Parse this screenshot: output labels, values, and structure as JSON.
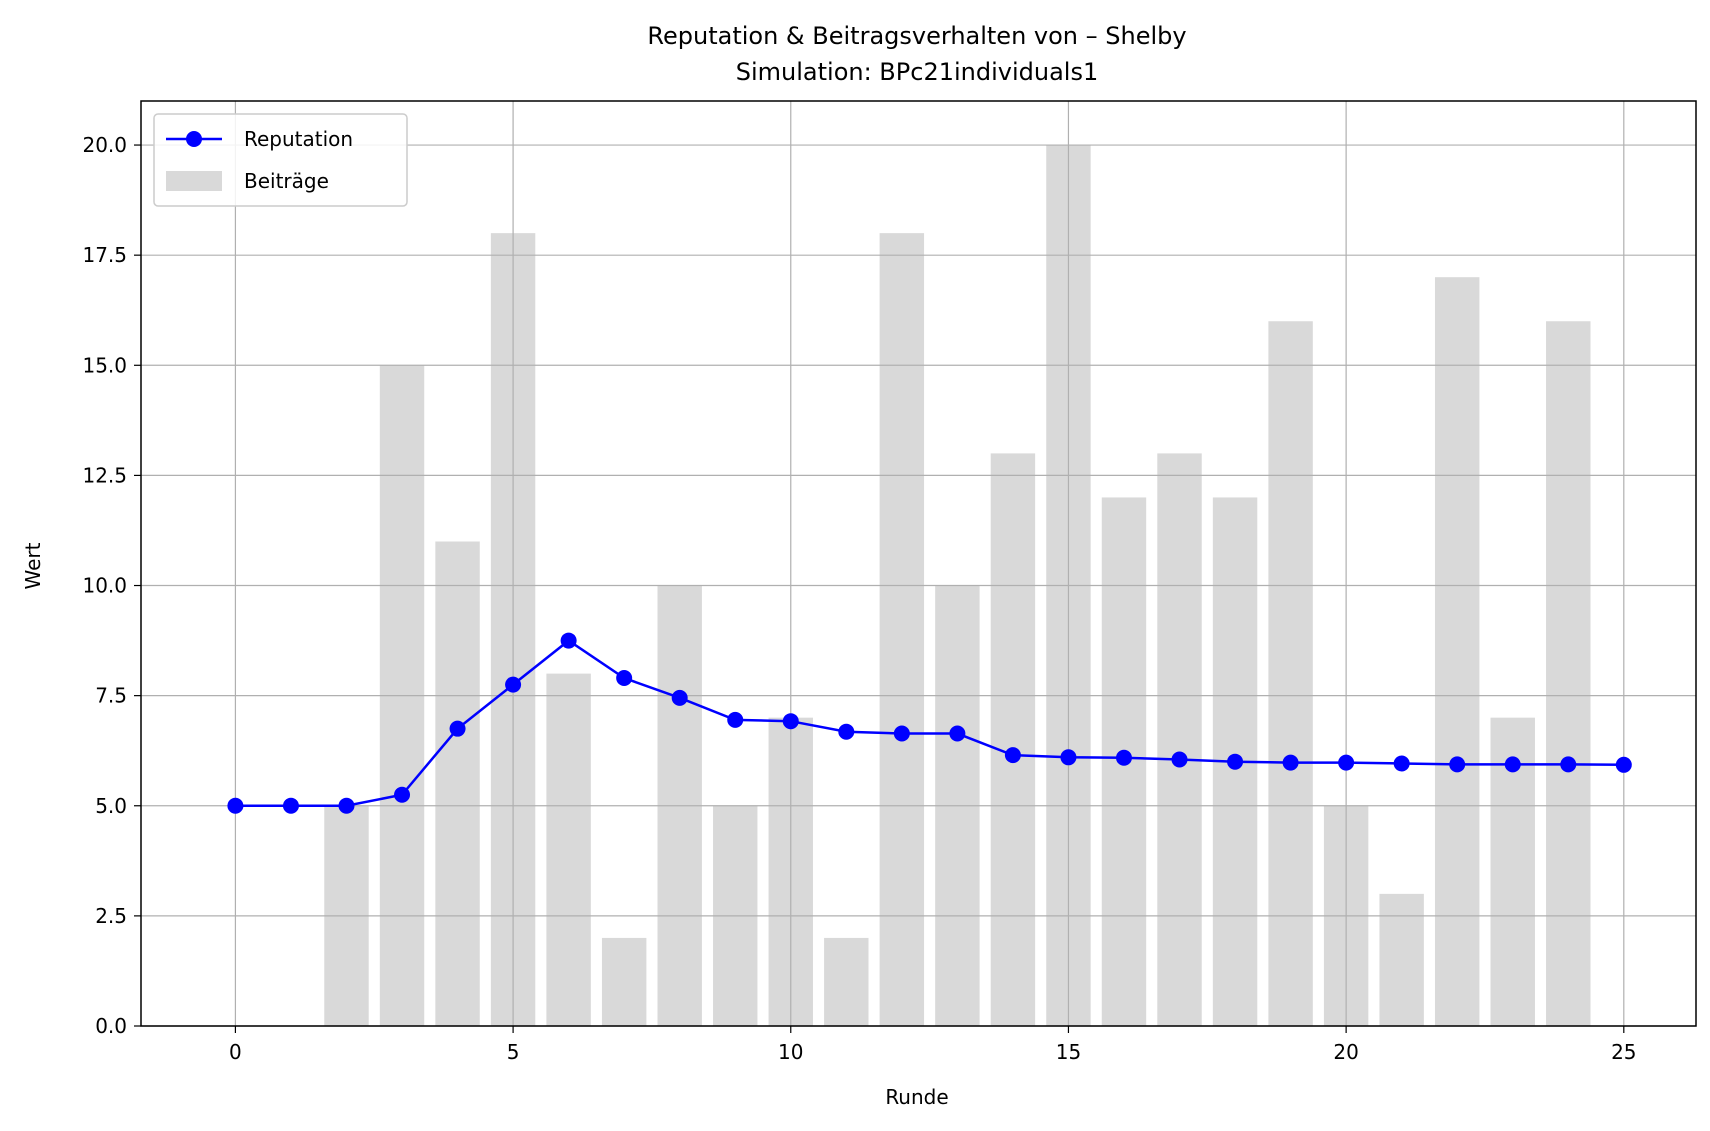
{
  "chart_data": {
    "type": "bar+line",
    "title": "Reputation & Beitragsverhalten von – Shelby",
    "subtitle": "Simulation: BPc21individuals1",
    "xlabel": "Runde",
    "ylabel": "Wert",
    "xlim": [
      -1.7,
      26.3
    ],
    "ylim": [
      0,
      21
    ],
    "x_ticks": [
      0,
      5,
      10,
      15,
      20,
      25
    ],
    "y_ticks": [
      0.0,
      2.5,
      5.0,
      7.5,
      10.0,
      12.5,
      15.0,
      17.5,
      20.0
    ],
    "grid": true,
    "legend_position": "top-left",
    "series": [
      {
        "name": "Reputation",
        "kind": "line",
        "color": "#0000ff",
        "marker": "circle",
        "x": [
          0,
          1,
          2,
          3,
          4,
          5,
          6,
          7,
          8,
          9,
          10,
          11,
          12,
          13,
          14,
          15,
          16,
          17,
          18,
          19,
          20,
          21,
          22,
          23,
          24,
          25
        ],
        "values": [
          5.0,
          5.0,
          5.0,
          5.25,
          6.75,
          7.75,
          8.75,
          7.9,
          7.45,
          6.95,
          6.92,
          6.68,
          6.64,
          6.64,
          6.15,
          6.1,
          6.09,
          6.05,
          6.0,
          5.98,
          5.98,
          5.96,
          5.94,
          5.94,
          5.94,
          5.93
        ]
      },
      {
        "name": "Beiträge",
        "kind": "bar",
        "color": "#d9d9d9",
        "x": [
          2,
          3,
          4,
          5,
          6,
          7,
          8,
          9,
          10,
          11,
          12,
          13,
          14,
          15,
          16,
          17,
          18,
          19,
          20,
          21,
          22,
          23,
          24
        ],
        "values": [
          5,
          15,
          11,
          18,
          8,
          2,
          10,
          5,
          7,
          2,
          18,
          10,
          13,
          20,
          12,
          13,
          12,
          16,
          5,
          3,
          17,
          7,
          16
        ]
      }
    ]
  }
}
